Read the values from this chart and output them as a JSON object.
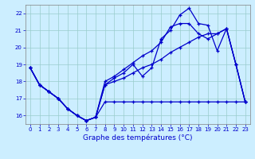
{
  "title": "Graphe des températures (°C)",
  "bg_color": "#cceeff",
  "grid_color": "#99cccc",
  "line_color": "#0000cc",
  "xlim": [
    -0.5,
    23.5
  ],
  "ylim": [
    15.5,
    22.5
  ],
  "yticks": [
    16,
    17,
    18,
    19,
    20,
    21,
    22
  ],
  "xticks": [
    0,
    1,
    2,
    3,
    4,
    5,
    6,
    7,
    8,
    9,
    10,
    11,
    12,
    13,
    14,
    15,
    16,
    17,
    18,
    19,
    20,
    21,
    22,
    23
  ],
  "series": [
    {
      "x": [
        0,
        1,
        2,
        3,
        4,
        5,
        6,
        7,
        8,
        9,
        10,
        11,
        12,
        13,
        14,
        15,
        16,
        17,
        18,
        19,
        20,
        21,
        22,
        23
      ],
      "y": [
        18.8,
        17.8,
        17.4,
        17.0,
        16.4,
        16.0,
        15.7,
        15.9,
        16.8,
        16.8,
        16.8,
        16.8,
        16.8,
        16.8,
        16.8,
        16.8,
        16.8,
        16.8,
        16.8,
        16.8,
        16.8,
        16.8,
        16.8,
        16.8
      ]
    },
    {
      "x": [
        0,
        1,
        2,
        3,
        4,
        5,
        6,
        7,
        8,
        9,
        10,
        11,
        12,
        13,
        14,
        15,
        16,
        17,
        18,
        19,
        20,
        21,
        22,
        23
      ],
      "y": [
        18.8,
        17.8,
        17.4,
        17.0,
        16.4,
        16.0,
        15.7,
        15.9,
        17.8,
        18.0,
        18.2,
        18.5,
        18.8,
        19.0,
        19.3,
        19.7,
        20.0,
        20.3,
        20.6,
        20.8,
        20.8,
        21.1,
        19.0,
        16.8
      ]
    },
    {
      "x": [
        0,
        1,
        2,
        3,
        4,
        5,
        6,
        7,
        8,
        9,
        10,
        11,
        12,
        13,
        14,
        15,
        16,
        17,
        18,
        19,
        20,
        21,
        22,
        23
      ],
      "y": [
        18.8,
        17.8,
        17.4,
        17.0,
        16.4,
        16.0,
        15.7,
        15.9,
        17.8,
        18.2,
        18.5,
        19.0,
        18.3,
        18.8,
        20.5,
        21.0,
        21.9,
        22.3,
        21.4,
        21.3,
        19.8,
        21.1,
        19.0,
        16.8
      ]
    },
    {
      "x": [
        0,
        1,
        2,
        3,
        4,
        5,
        6,
        7,
        8,
        9,
        10,
        11,
        12,
        13,
        14,
        15,
        16,
        17,
        18,
        19,
        20,
        21,
        22,
        23
      ],
      "y": [
        18.8,
        17.8,
        17.4,
        17.0,
        16.4,
        16.0,
        15.7,
        15.9,
        18.0,
        18.3,
        18.7,
        19.1,
        19.5,
        19.8,
        20.3,
        21.2,
        21.4,
        21.4,
        20.8,
        20.5,
        20.8,
        21.1,
        19.0,
        16.8
      ]
    }
  ]
}
